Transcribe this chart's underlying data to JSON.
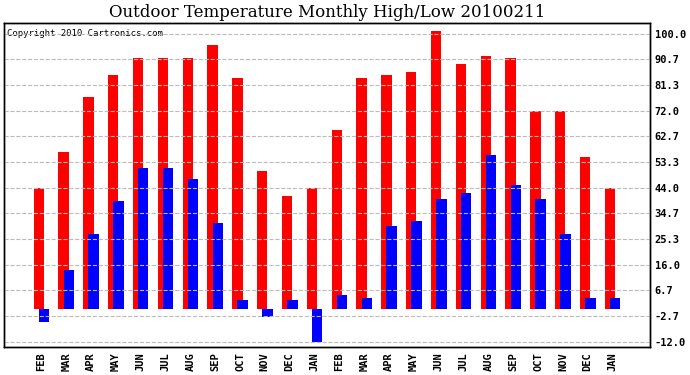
{
  "title": "Outdoor Temperature Monthly High/Low 20100211",
  "copyright": "Copyright 2010 Cartronics.com",
  "months": [
    "FEB",
    "MAR",
    "APR",
    "MAY",
    "JUN",
    "JUL",
    "AUG",
    "SEP",
    "OCT",
    "NOV",
    "DEC",
    "JAN",
    "FEB",
    "MAR",
    "APR",
    "MAY",
    "JUN",
    "JUL",
    "AUG",
    "SEP",
    "OCT",
    "NOV",
    "DEC",
    "JAN"
  ],
  "highs": [
    44,
    57,
    77,
    85,
    91,
    91,
    91,
    96,
    84,
    50,
    41,
    44,
    65,
    84,
    85,
    86,
    101,
    89,
    92,
    91,
    72,
    72,
    55,
    44
  ],
  "lows": [
    -5,
    14,
    27,
    39,
    51,
    51,
    47,
    31,
    3,
    -3,
    3,
    -12,
    5,
    4,
    30,
    32,
    40,
    42,
    56,
    45,
    40,
    27,
    4,
    4
  ],
  "y_ticks": [
    -12.0,
    -2.7,
    6.7,
    16.0,
    25.3,
    34.7,
    44.0,
    53.3,
    62.7,
    72.0,
    81.3,
    90.7,
    100.0
  ],
  "ylim": [
    -14,
    104
  ],
  "high_color": "#ff0000",
  "low_color": "#0000ff",
  "background_color": "#ffffff",
  "grid_color": "#bbbbbb",
  "title_fontsize": 12,
  "tick_fontsize": 7.5
}
